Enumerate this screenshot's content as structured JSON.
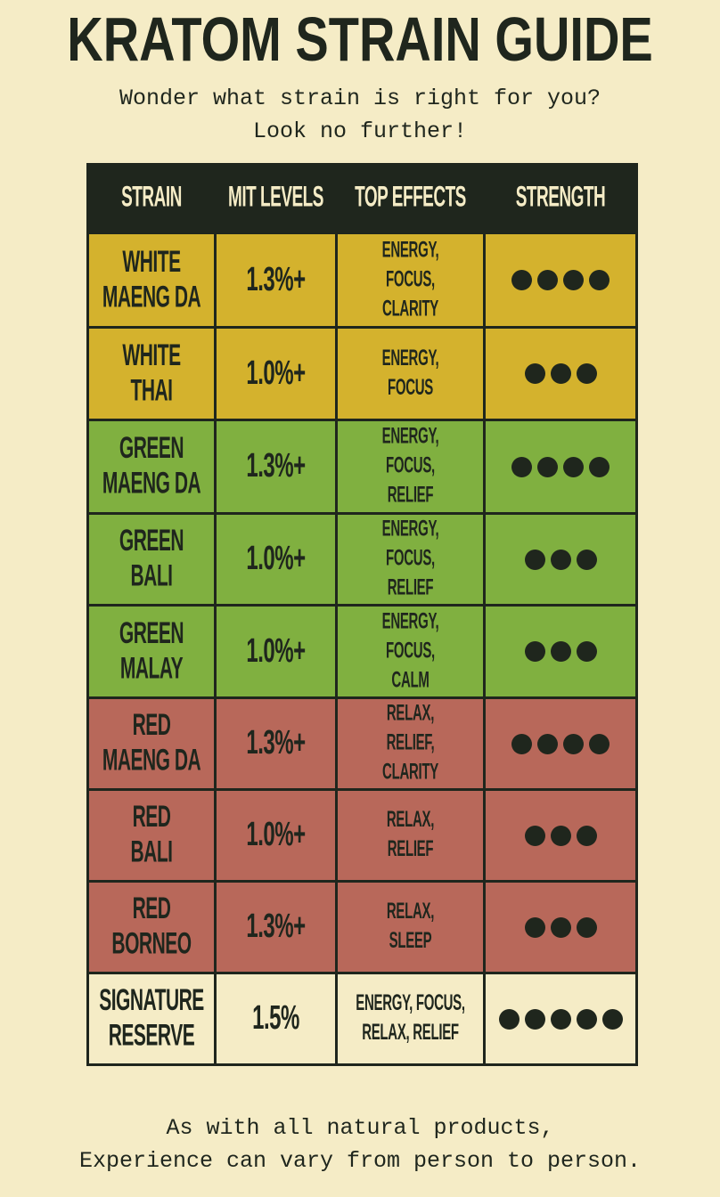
{
  "title": "KRATOM STRAIN GUIDE",
  "subtitle": "Wonder what strain is right for you?\nLook no further!",
  "footer": "As with all natural products,\nExperience can vary from person to person.",
  "colors": {
    "background": "#f5ecc6",
    "dark": "#1f261d",
    "white": "#d4b22d",
    "green": "#80b040",
    "red": "#b8685a"
  },
  "headers": [
    "STRAIN",
    "MIT LEVELS",
    "TOP EFFECTS",
    "STRENGTH"
  ],
  "rows": [
    {
      "group": "white",
      "strain": "WHITE\nMAENG DA",
      "mit": "1.3%+",
      "effects": "ENERGY,\nFOCUS,\nCLARITY",
      "strength": 4
    },
    {
      "group": "white",
      "strain": "WHITE\nTHAI",
      "mit": "1.0%+",
      "effects": "ENERGY,\nFOCUS",
      "strength": 3
    },
    {
      "group": "green",
      "strain": "GREEN\nMAENG DA",
      "mit": "1.3%+",
      "effects": "ENERGY,\nFOCUS,\nRELIEF",
      "strength": 4
    },
    {
      "group": "green",
      "strain": "GREEN\nBALI",
      "mit": "1.0%+",
      "effects": "ENERGY,\nFOCUS,\nRELIEF",
      "strength": 3
    },
    {
      "group": "green",
      "strain": "GREEN\nMALAY",
      "mit": "1.0%+",
      "effects": "ENERGY,\nFOCUS,\nCALM",
      "strength": 3
    },
    {
      "group": "red",
      "strain": "RED\nMAENG DA",
      "mit": "1.3%+",
      "effects": "RELAX,\nRELIEF,\nCLARITY",
      "strength": 4
    },
    {
      "group": "red",
      "strain": "RED\nBALI",
      "mit": "1.0%+",
      "effects": "RELAX,\nRELIEF",
      "strength": 3
    },
    {
      "group": "red",
      "strain": "RED\nBORNEO",
      "mit": "1.3%+",
      "effects": "RELAX,\nSLEEP",
      "strength": 3
    },
    {
      "group": "sig",
      "strain": "SIGNATURE\nRESERVE",
      "mit": "1.5%",
      "effects": "ENERGY, FOCUS,\nRELAX, RELIEF",
      "strength": 5
    }
  ]
}
